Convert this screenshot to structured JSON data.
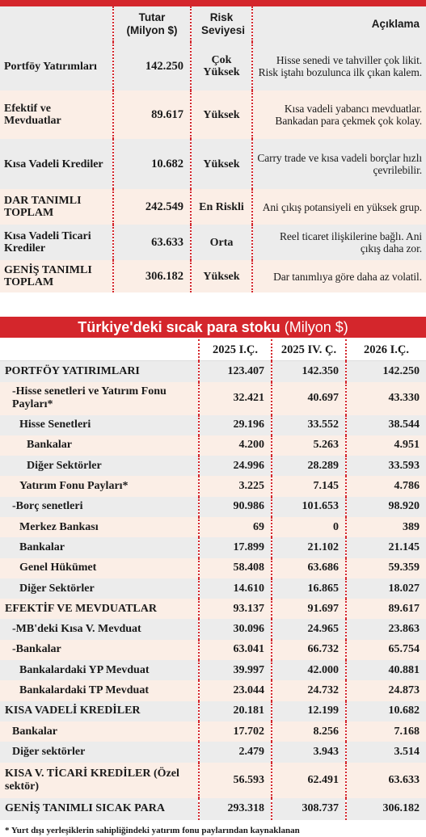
{
  "table1": {
    "columns": [
      "Tutar (Milyon $)",
      "Risk Seviyesi",
      "Açıklama"
    ],
    "rows": [
      [
        "Portföy Yatırımları",
        "142.250",
        "Çok Yüksek",
        "Hisse senedi ve tahviller çok likit. Risk iştahı bozulunca ilk çıkan kalem."
      ],
      [
        "Efektif ve Mevduatlar",
        "89.617",
        "Yüksek",
        "Kısa vadeli yabancı mevduatlar. Bankadan para çekmek çok kolay."
      ],
      [
        "Kısa Vadeli Krediler",
        "10.682",
        "Yüksek",
        "Carry trade ve kısa vadeli borçlar hızlı çevrilebilir."
      ],
      [
        "DAR TANIMLI TOPLAM",
        "242.549",
        "En Riskli",
        "Ani çıkış potansiyeli en yüksek grup."
      ],
      [
        "Kısa Vadeli Ticari Krediler",
        "63.633",
        "Orta",
        "Reel ticaret ilişkilerine bağlı. Ani çıkış daha zor."
      ],
      [
        "GENİŞ TANIMLI TOPLAM",
        "306.182",
        "Yüksek",
        "Dar tanımlıya göre daha az volatil."
      ]
    ]
  },
  "table2": {
    "title": "Türkiye'deki sıcak para stoku",
    "unit": "(Milyon $)",
    "columns": [
      "2025 I.Ç.",
      "2025 IV. Ç.",
      "2026 I.Ç."
    ],
    "rows": [
      [
        "PORTFÖY YATIRIMLARI",
        "123.407",
        "142.350",
        "142.250"
      ],
      [
        "-Hisse senetleri ve Yatırım Fonu Payları*",
        "32.421",
        "40.697",
        "43.330"
      ],
      [
        "Hisse Senetleri",
        "29.196",
        "33.552",
        "38.544"
      ],
      [
        "Bankalar",
        "4.200",
        "5.263",
        "4.951"
      ],
      [
        "Diğer Sektörler",
        "24.996",
        "28.289",
        "33.593"
      ],
      [
        "Yatırım Fonu Payları*",
        "3.225",
        "7.145",
        "4.786"
      ],
      [
        "-Borç senetleri",
        "90.986",
        "101.653",
        "98.920"
      ],
      [
        "Merkez Bankası",
        "69",
        "0",
        "389"
      ],
      [
        "Bankalar",
        "17.899",
        "21.102",
        "21.145"
      ],
      [
        "Genel Hükümet",
        "58.408",
        "63.686",
        "59.359"
      ],
      [
        "Diğer Sektörler",
        "14.610",
        "16.865",
        "18.027"
      ],
      [
        "EFEKTİF VE MEVDUATLAR",
        "93.137",
        "91.697",
        "89.617"
      ],
      [
        "-MB'deki Kısa V. Mevduat",
        "30.096",
        "24.965",
        "23.863"
      ],
      [
        "-Bankalar",
        "63.041",
        "66.732",
        "65.754"
      ],
      [
        "Bankalardaki YP Mevduat",
        "39.997",
        "42.000",
        "40.881"
      ],
      [
        "Bankalardaki TP Mevduat",
        "23.044",
        "24.732",
        "24.873"
      ],
      [
        "KISA VADELİ KREDİLER",
        "20.181",
        "12.199",
        "10.682"
      ],
      [
        "Bankalar",
        "17.702",
        "8.256",
        "7.168"
      ],
      [
        "Diğer sektörler",
        "2.479",
        "3.943",
        "3.514"
      ],
      [
        "KISA V. TİCARİ KREDİLER (Özel sektör)",
        "56.593",
        "62.491",
        "63.633"
      ],
      [
        "GENİŞ TANIMLI SICAK PARA",
        "293.318",
        "308.737",
        "306.182"
      ]
    ],
    "footnote": "* Yurt dışı yerleşiklerin sahipliğindeki yatırım fonu paylarından kaynaklanan"
  }
}
